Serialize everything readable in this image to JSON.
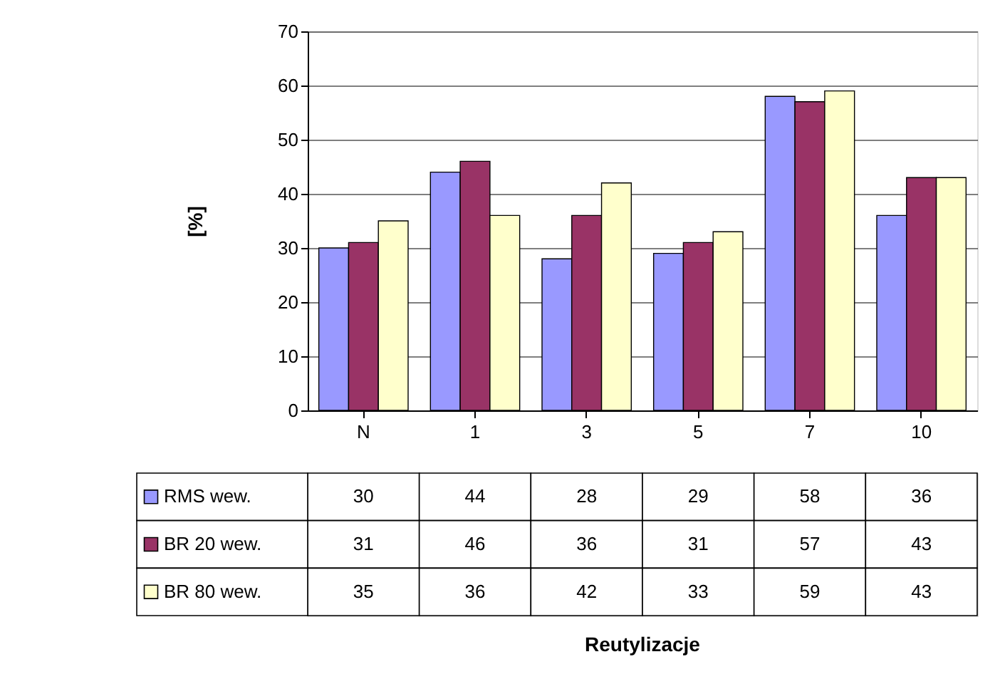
{
  "chart_data": {
    "type": "bar",
    "annotations": [
      "Reutylizacje"
    ],
    "ylabel": "[%]",
    "categories": [
      "N",
      "1",
      "3",
      "5",
      "7",
      "10"
    ],
    "series": [
      {
        "name": "RMS wew.",
        "color": "#9999ff",
        "values": [
          30,
          44,
          28,
          29,
          58,
          36
        ]
      },
      {
        "name": "BR 20 wew.",
        "color": "#993366",
        "values": [
          31,
          46,
          36,
          31,
          57,
          43
        ]
      },
      {
        "name": "BR 80 wew.",
        "color": "#ffffcc",
        "values": [
          35,
          36,
          42,
          33,
          59,
          43
        ]
      }
    ],
    "ylim": [
      0,
      70
    ],
    "yticks": [
      0,
      10,
      20,
      30,
      40,
      50,
      60,
      70
    ],
    "grid": "y",
    "legend": "bottom",
    "data_labels": true
  }
}
